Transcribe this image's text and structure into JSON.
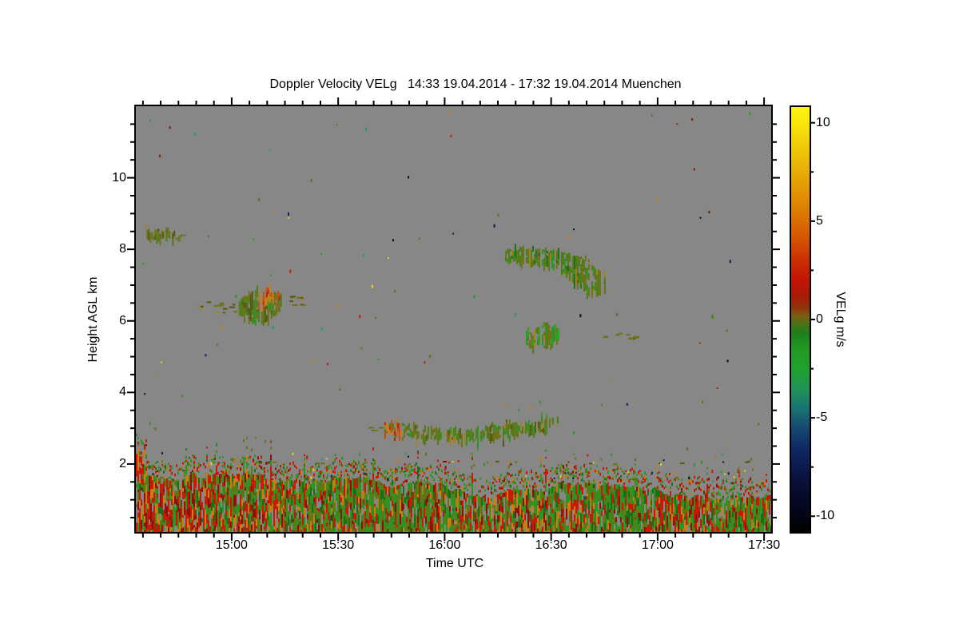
{
  "chart_data": {
    "type": "heatmap",
    "title": "Doppler Velocity VELg   14:33 19.04.2014 - 17:32 19.04.2014 Muenchen",
    "variable": "Doppler Velocity VELg",
    "time_start": "14:33 19.04.2014",
    "time_end": "17:32 19.04.2014",
    "station": "Muenchen",
    "xlabel": "Time UTC",
    "ylabel": "Height AGL km",
    "colorbar_label": "VELg m/s",
    "background_color": "#878787",
    "frame_color": "#000000",
    "x_range_minutes": [
      0,
      179
    ],
    "x_ticks": [
      {
        "label": "15:00",
        "minute": 27
      },
      {
        "label": "15:30",
        "minute": 57
      },
      {
        "label": "16:00",
        "minute": 87
      },
      {
        "label": "16:30",
        "minute": 117
      },
      {
        "label": "17:00",
        "minute": 147
      },
      {
        "label": "17:30",
        "minute": 177
      }
    ],
    "x_minor_step_min": 5,
    "y_range_km": [
      0.1,
      12.0
    ],
    "y_ticks": [
      {
        "label": "2",
        "km": 2
      },
      {
        "label": "4",
        "km": 4
      },
      {
        "label": "6",
        "km": 6
      },
      {
        "label": "8",
        "km": 8
      },
      {
        "label": "10",
        "km": 10
      }
    ],
    "y_minor_step_km": 0.5,
    "colorbar": {
      "vmin": -10.8,
      "vmax": 10.8,
      "ticks": [
        {
          "label": "10",
          "value": 10
        },
        {
          "label": "5",
          "value": 5
        },
        {
          "label": "0",
          "value": 0
        },
        {
          "label": "-5",
          "value": -5
        },
        {
          "label": "-10",
          "value": -10
        }
      ],
      "minor_ticks": [
        -7.5,
        -2.5,
        2.5,
        7.5
      ]
    },
    "colormap_stops": [
      [
        -10.8,
        "#000000"
      ],
      [
        -9.5,
        "#04071f"
      ],
      [
        -8.0,
        "#0a1240"
      ],
      [
        -6.5,
        "#102a66"
      ],
      [
        -5.5,
        "#154a70"
      ],
      [
        -4.5,
        "#1a7473"
      ],
      [
        -3.5,
        "#1e9455"
      ],
      [
        -2.5,
        "#21a12e"
      ],
      [
        -1.5,
        "#219921"
      ],
      [
        -0.7,
        "#1d7f1b"
      ],
      [
        -0.2,
        "#4e7214"
      ],
      [
        0.2,
        "#7d5d10"
      ],
      [
        0.6,
        "#8f3408"
      ],
      [
        1.2,
        "#a81a06"
      ],
      [
        2.0,
        "#c21405"
      ],
      [
        3.0,
        "#cc2e02"
      ],
      [
        4.2,
        "#d45703"
      ],
      [
        5.5,
        "#dd7b04"
      ],
      [
        7.0,
        "#e5a006"
      ],
      [
        8.5,
        "#eec308"
      ],
      [
        10.0,
        "#f8e60a"
      ],
      [
        10.8,
        "#fdf312"
      ]
    ],
    "palette": {
      "olive": "#6e7214",
      "oliveDark": "#55590e",
      "oliveGreen": "#507c12",
      "green": "#2d9421",
      "greenBright": "#2aa62a",
      "greenDark": "#1c6e16",
      "tan": "#a5821e",
      "orange": "#cf7c10",
      "orangeRed": "#c2500a",
      "red": "#c41a06",
      "darkRed": "#8c1205",
      "teal": "#1f9a7a",
      "navy": "#0e1d50",
      "yellow": "#ecd215",
      "black": "#0a0a0a"
    },
    "noise_seed": 1337,
    "boundary_layer": {
      "top_km_left": 1.55,
      "top_km_right": 1.08,
      "bottom_km": 0.1,
      "fringe_km": 0.55,
      "gap_prob": 0.1,
      "red_colors": {
        "red": 0.5,
        "darkRed": 0.22,
        "orange": 0.16,
        "tan": 0.12
      },
      "green_colors": {
        "green": 0.42,
        "greenDark": 0.2,
        "oliveGreen": 0.22,
        "olive": 0.16
      }
    },
    "sparse_speckles": {
      "upper_count": 90,
      "upper_h": [
        2.35,
        11.9
      ],
      "band_count": 140,
      "band_h": [
        1.5,
        2.35
      ],
      "row_km": 2.05,
      "row_prob": 0.08,
      "colors": {
        "olive": 0.16,
        "oliveGreen": 0.1,
        "green": 0.15,
        "red": 0.13,
        "darkRed": 0.07,
        "orange": 0.09,
        "tan": 0.05,
        "teal": 0.08,
        "yellow": 0.07,
        "navy": 0.06,
        "black": 0.04
      },
      "row_colors": {
        "olive": 0.4,
        "oliveDark": 0.2,
        "green": 0.15,
        "darkRed": 0.1,
        "tan": 0.15
      }
    },
    "features": [
      {
        "name": "cirrus-streak-8.4km",
        "style": "blob",
        "t0": 3,
        "t1": 11,
        "env": [
          [
            0,
            8.55,
            8.33
          ],
          [
            1,
            8.5,
            8.3
          ]
        ],
        "colors": {
          "olive": 0.55,
          "oliveDark": 0.3,
          "oliveGreen": 0.15
        },
        "gap": 0.25
      },
      {
        "name": "dashes-8.3km",
        "style": "dashes",
        "t0": 11,
        "t1": 14,
        "h0": 8.25,
        "h1": 8.45,
        "count": 4,
        "colors": {
          "olive": 0.7,
          "tan": 0.3
        }
      },
      {
        "name": "dashes-6.4km-left",
        "style": "dashes",
        "t0": 17,
        "t1": 28,
        "h0": 6.25,
        "h1": 6.55,
        "count": 14,
        "colors": {
          "olive": 0.5,
          "oliveDark": 0.3,
          "tan": 0.2
        }
      },
      {
        "name": "cloud-6.5km",
        "style": "blob",
        "t0": 29,
        "t1": 41,
        "env": [
          [
            0,
            6.55,
            6.2
          ],
          [
            0.3,
            6.8,
            6.0
          ],
          [
            0.65,
            6.9,
            6.05
          ],
          [
            1,
            6.75,
            6.45
          ]
        ],
        "colors": {
          "olive": 0.3,
          "oliveGreen": 0.3,
          "green": 0.2,
          "oliveDark": 0.2
        },
        "core": {
          "f0": 0.45,
          "f1": 0.95,
          "g0": 0.0,
          "g1": 0.55,
          "p": 0.8,
          "colors": {
            "orange": 0.4,
            "orangeRed": 0.3,
            "tan": 0.2,
            "red": 0.1
          }
        },
        "gap": 0.12
      },
      {
        "name": "dashes-6.5km-right",
        "style": "dashes",
        "t0": 43,
        "t1": 47,
        "h0": 6.35,
        "h1": 6.7,
        "count": 9,
        "colors": {
          "olive": 0.6,
          "tan": 0.2,
          "oliveDark": 0.2
        }
      },
      {
        "name": "arc-cloud-8km",
        "style": "blob",
        "t0": 104,
        "t1": 132,
        "env": [
          [
            0,
            7.95,
            7.72
          ],
          [
            0.15,
            8.05,
            7.68
          ],
          [
            0.4,
            8.0,
            7.58
          ],
          [
            0.55,
            7.95,
            7.4
          ],
          [
            0.7,
            7.8,
            7.0
          ],
          [
            0.85,
            7.6,
            6.8
          ],
          [
            1,
            7.25,
            6.88
          ]
        ],
        "colors": {
          "oliveGreen": 0.4,
          "olive": 0.3,
          "greenDark": 0.15,
          "green": 0.1,
          "tan": 0.05
        },
        "gap": 0.18
      },
      {
        "name": "cloud-5.6km",
        "style": "blob",
        "t0": 109,
        "t1": 119,
        "env": [
          [
            0,
            5.6,
            5.4
          ],
          [
            0.3,
            5.7,
            5.28
          ],
          [
            0.6,
            5.95,
            5.3
          ],
          [
            1,
            5.75,
            5.55
          ]
        ],
        "colors": {
          "greenBright": 0.3,
          "green": 0.25,
          "oliveGreen": 0.25,
          "olive": 0.15,
          "tan": 0.05
        },
        "gap": 0.15
      },
      {
        "name": "dashes-5.6km",
        "style": "dashes",
        "t0": 131,
        "t1": 142,
        "h0": 5.5,
        "h1": 5.7,
        "count": 10,
        "colors": {
          "olive": 0.7,
          "oliveDark": 0.3
        }
      },
      {
        "name": "dashes-3km-lead",
        "style": "dashes",
        "t0": 65,
        "t1": 70,
        "h0": 2.95,
        "h1": 3.1,
        "count": 3,
        "colors": {
          "orange": 0.5,
          "olive": 0.5
        }
      },
      {
        "name": "layer-3km",
        "style": "blob",
        "t0": 70,
        "t1": 119,
        "env": [
          [
            0,
            3.08,
            2.92
          ],
          [
            0.08,
            3.12,
            2.8
          ],
          [
            0.25,
            3.02,
            2.72
          ],
          [
            0.45,
            2.98,
            2.68
          ],
          [
            0.65,
            3.05,
            2.78
          ],
          [
            0.8,
            3.18,
            2.88
          ],
          [
            0.92,
            3.25,
            3.0
          ],
          [
            1,
            3.28,
            3.1
          ]
        ],
        "colors": {
          "olive": 0.3,
          "oliveGreen": 0.3,
          "green": 0.2,
          "oliveDark": 0.1,
          "tan": 0.1
        },
        "core": {
          "f0": 0.0,
          "f1": 0.1,
          "g0": 0.0,
          "g1": 1.0,
          "p": 0.85,
          "colors": {
            "orangeRed": 0.4,
            "red": 0.3,
            "orange": 0.3
          }
        },
        "gap": 0.2
      }
    ]
  }
}
